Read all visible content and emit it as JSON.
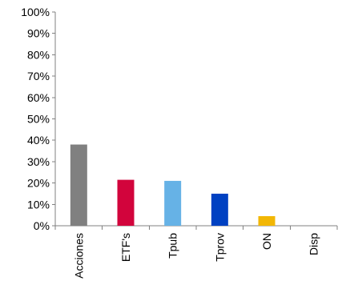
{
  "chart_data": {
    "type": "bar",
    "title": "",
    "xlabel": "",
    "ylabel": "",
    "categories": [
      "Acciones",
      "ETF's",
      "Tpub",
      "Tprov",
      "ON",
      "Disp"
    ],
    "values": [
      38,
      21.5,
      21,
      15,
      4.5,
      0
    ],
    "colors": [
      "#808080",
      "#d2043c",
      "#66b2e6",
      "#0041c2",
      "#f2b705",
      "#cccccc"
    ],
    "ylim": [
      0,
      100
    ],
    "yticks": [
      {
        "value": 0,
        "label": "0%"
      },
      {
        "value": 10,
        "label": "10%"
      },
      {
        "value": 20,
        "label": "20%"
      },
      {
        "value": 30,
        "label": "30%"
      },
      {
        "value": 40,
        "label": "40%"
      },
      {
        "value": 50,
        "label": "50%"
      },
      {
        "value": 60,
        "label": "60%"
      },
      {
        "value": 70,
        "label": "70%"
      },
      {
        "value": 80,
        "label": "80%"
      },
      {
        "value": 90,
        "label": "90%"
      },
      {
        "value": 100,
        "label": "100%"
      }
    ],
    "grid": false,
    "legend": "none"
  }
}
